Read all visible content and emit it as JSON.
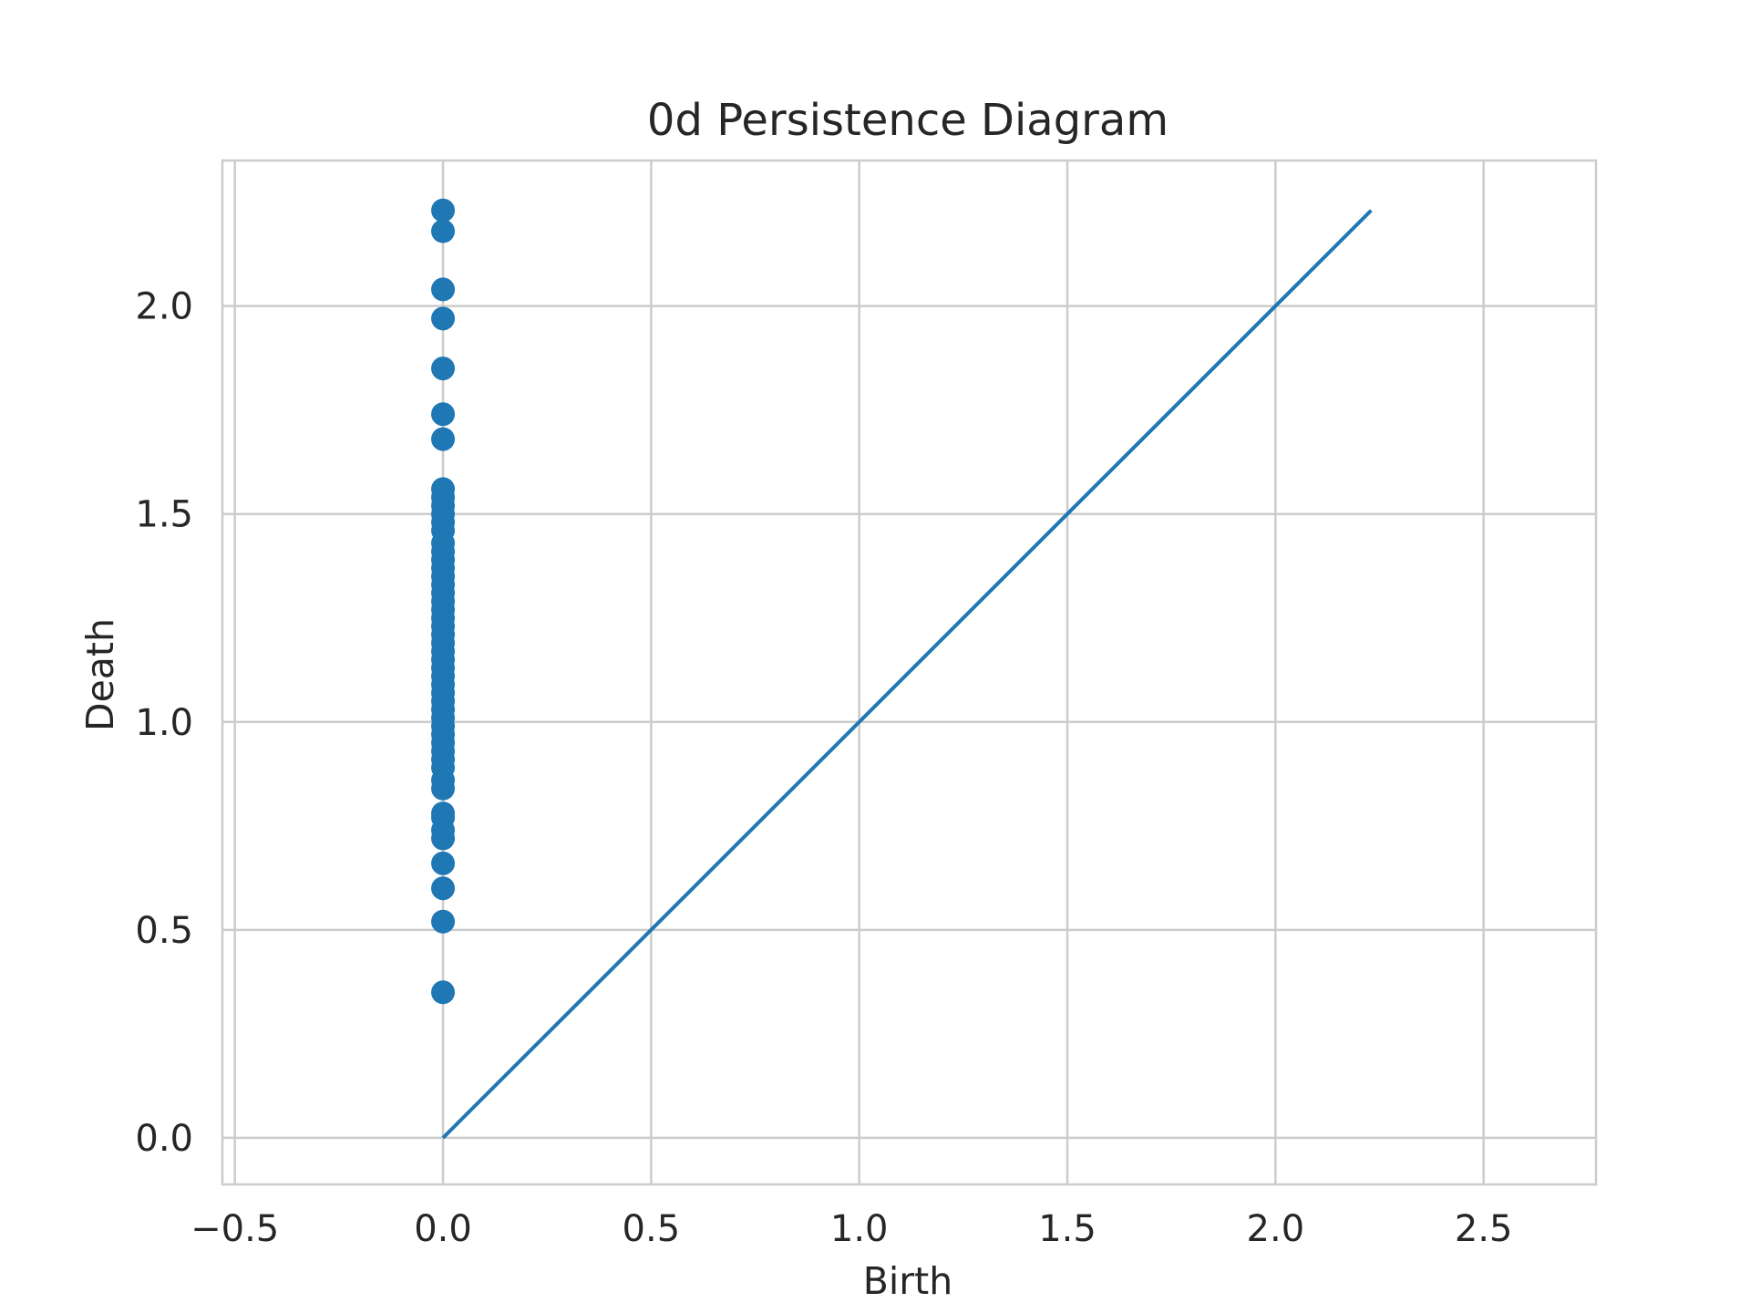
{
  "chart_data": {
    "type": "scatter",
    "title": "0d Persistence Diagram",
    "xlabel": "Birth",
    "ylabel": "Death",
    "xlim": [
      -0.53,
      2.77
    ],
    "ylim": [
      -0.112,
      2.35
    ],
    "grid": true,
    "x_ticks": [
      -0.5,
      0.0,
      0.5,
      1.0,
      1.5,
      2.0,
      2.5
    ],
    "x_tick_labels": [
      "−0.5",
      "0.0",
      "0.5",
      "1.0",
      "1.5",
      "2.0",
      "2.5"
    ],
    "y_ticks": [
      0.0,
      0.5,
      1.0,
      1.5,
      2.0
    ],
    "y_tick_labels": [
      "0.0",
      "0.5",
      "1.0",
      "1.5",
      "2.0"
    ],
    "series": [
      {
        "kind": "scatter",
        "color": "#1f77b4",
        "points": [
          {
            "x": 0,
            "y": 0.35
          },
          {
            "x": 0,
            "y": 0.52
          },
          {
            "x": 0,
            "y": 0.6
          },
          {
            "x": 0,
            "y": 0.66
          },
          {
            "x": 0,
            "y": 0.72
          },
          {
            "x": 0,
            "y": 0.74
          },
          {
            "x": 0,
            "y": 0.77
          },
          {
            "x": 0,
            "y": 0.78
          },
          {
            "x": 0,
            "y": 0.84
          },
          {
            "x": 0,
            "y": 0.86
          },
          {
            "x": 0,
            "y": 0.89
          },
          {
            "x": 0,
            "y": 0.91
          },
          {
            "x": 0,
            "y": 0.93
          },
          {
            "x": 0,
            "y": 0.95
          },
          {
            "x": 0,
            "y": 0.97
          },
          {
            "x": 0,
            "y": 0.99
          },
          {
            "x": 0,
            "y": 1.01
          },
          {
            "x": 0,
            "y": 1.03
          },
          {
            "x": 0,
            "y": 1.05
          },
          {
            "x": 0,
            "y": 1.07
          },
          {
            "x": 0,
            "y": 1.09
          },
          {
            "x": 0,
            "y": 1.11
          },
          {
            "x": 0,
            "y": 1.13
          },
          {
            "x": 0,
            "y": 1.15
          },
          {
            "x": 0,
            "y": 1.17
          },
          {
            "x": 0,
            "y": 1.19
          },
          {
            "x": 0,
            "y": 1.21
          },
          {
            "x": 0,
            "y": 1.23
          },
          {
            "x": 0,
            "y": 1.25
          },
          {
            "x": 0,
            "y": 1.27
          },
          {
            "x": 0,
            "y": 1.29
          },
          {
            "x": 0,
            "y": 1.31
          },
          {
            "x": 0,
            "y": 1.33
          },
          {
            "x": 0,
            "y": 1.35
          },
          {
            "x": 0,
            "y": 1.37
          },
          {
            "x": 0,
            "y": 1.39
          },
          {
            "x": 0,
            "y": 1.41
          },
          {
            "x": 0,
            "y": 1.43
          },
          {
            "x": 0,
            "y": 1.46
          },
          {
            "x": 0,
            "y": 1.48
          },
          {
            "x": 0,
            "y": 1.5
          },
          {
            "x": 0,
            "y": 1.52
          },
          {
            "x": 0,
            "y": 1.54
          },
          {
            "x": 0,
            "y": 1.56
          },
          {
            "x": 0,
            "y": 1.68
          },
          {
            "x": 0,
            "y": 1.74
          },
          {
            "x": 0,
            "y": 1.85
          },
          {
            "x": 0,
            "y": 1.97
          },
          {
            "x": 0,
            "y": 2.04
          },
          {
            "x": 0,
            "y": 2.18
          },
          {
            "x": 0,
            "y": 2.23
          }
        ]
      },
      {
        "kind": "line",
        "color": "#1f77b4",
        "points": [
          {
            "x": 0,
            "y": 0
          },
          {
            "x": 2.23,
            "y": 2.23
          }
        ]
      }
    ]
  }
}
